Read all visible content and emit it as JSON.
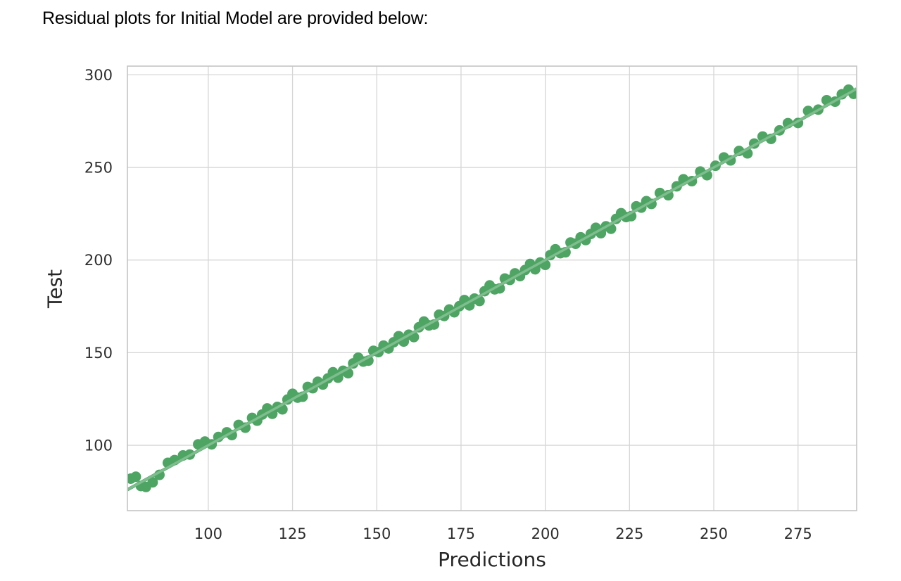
{
  "caption": {
    "text": "Residual plots for Initial Model are provided below:"
  },
  "chart_data": {
    "type": "scatter",
    "title": "",
    "xlabel": "Predictions",
    "ylabel": "Test",
    "xlim": [
      76,
      292.4
    ],
    "ylim": [
      64.7,
      304.7
    ],
    "x_ticks": [
      100,
      125,
      150,
      175,
      200,
      225,
      250,
      275
    ],
    "y_ticks": [
      100,
      150,
      200,
      250,
      300
    ],
    "grid": true,
    "legend": "none",
    "colors": {
      "point": "#4EA463",
      "fit_line": "#4EA463",
      "fit_line_highlight": "rgba(255,255,255,0.28)",
      "grid": "#d6d6d6",
      "border": "#c4c4c4",
      "tick_text": "#2e2e2e",
      "label_text": "#262626"
    },
    "fit_line": {
      "x": [
        76,
        292.4
      ],
      "y": [
        76,
        292.4
      ]
    },
    "points": {
      "x": [
        77.0,
        78.5,
        80.0,
        81.5,
        83.5,
        85.5,
        88.0,
        90.0,
        92.5,
        94.5,
        97.0,
        99.0,
        101.0,
        103.0,
        105.5,
        107.0,
        109.0,
        111.0,
        113.0,
        114.5,
        116.0,
        117.5,
        119.0,
        120.5,
        122.0,
        123.5,
        125.0,
        126.5,
        128.0,
        129.5,
        131.0,
        132.5,
        134.0,
        135.5,
        137.0,
        138.5,
        140.0,
        141.5,
        143.0,
        144.5,
        146.0,
        147.5,
        149.0,
        150.5,
        152.0,
        153.5,
        155.0,
        156.5,
        158.0,
        159.5,
        161.0,
        162.5,
        164.0,
        165.5,
        167.0,
        168.5,
        170.0,
        171.5,
        173.0,
        174.5,
        176.0,
        177.5,
        179.0,
        180.5,
        182.0,
        183.5,
        185.0,
        186.5,
        188.0,
        189.5,
        191.0,
        192.5,
        194.0,
        195.5,
        197.0,
        198.5,
        200.0,
        201.5,
        203.0,
        204.5,
        206.0,
        207.5,
        209.0,
        210.5,
        212.0,
        213.5,
        215.0,
        216.5,
        218.0,
        219.5,
        221.0,
        222.5,
        224.0,
        225.5,
        227.0,
        228.5,
        230.0,
        231.5,
        234.0,
        236.5,
        239.0,
        241.0,
        243.5,
        246.0,
        248.0,
        250.5,
        253.0,
        255.0,
        257.5,
        260.0,
        262.0,
        264.5,
        267.0,
        269.5,
        272.0,
        275.0,
        278.0,
        281.0,
        283.5,
        286.0,
        288.0,
        290.0,
        291.5
      ],
      "y": [
        82.0,
        83.0,
        78.0,
        77.5,
        80.0,
        84.0,
        90.5,
        92.0,
        94.5,
        95.0,
        100.5,
        102.0,
        100.5,
        104.5,
        107.0,
        105.5,
        111.0,
        109.5,
        114.8,
        113.3,
        116.6,
        119.9,
        117.0,
        120.7,
        119.4,
        124.7,
        127.8,
        125.7,
        126.2,
        131.5,
        130.8,
        134.3,
        132.8,
        136.1,
        139.4,
        136.5,
        140.2,
        138.9,
        144.2,
        147.3,
        145.2,
        145.7,
        151.0,
        150.3,
        153.8,
        152.3,
        155.6,
        158.9,
        156.0,
        159.7,
        158.4,
        163.7,
        166.8,
        164.7,
        165.2,
        170.5,
        169.8,
        173.3,
        171.8,
        175.1,
        178.4,
        175.5,
        179.2,
        177.9,
        183.2,
        186.3,
        184.2,
        184.7,
        190.0,
        189.3,
        192.8,
        191.3,
        194.6,
        197.9,
        195.0,
        198.7,
        197.4,
        202.7,
        205.8,
        203.7,
        204.2,
        209.5,
        208.8,
        212.3,
        210.8,
        214.1,
        217.4,
        214.5,
        218.2,
        216.9,
        222.2,
        225.3,
        223.2,
        223.7,
        229.0,
        228.3,
        231.8,
        230.3,
        236.2,
        235.0,
        239.8,
        243.6,
        242.6,
        247.8,
        245.8,
        250.9,
        255.4,
        253.8,
        258.9,
        257.6,
        262.9,
        266.7,
        265.4,
        270.0,
        273.9,
        274.0,
        280.5,
        281.2,
        286.3,
        285.5,
        289.5,
        292.0,
        289.7
      ]
    }
  }
}
